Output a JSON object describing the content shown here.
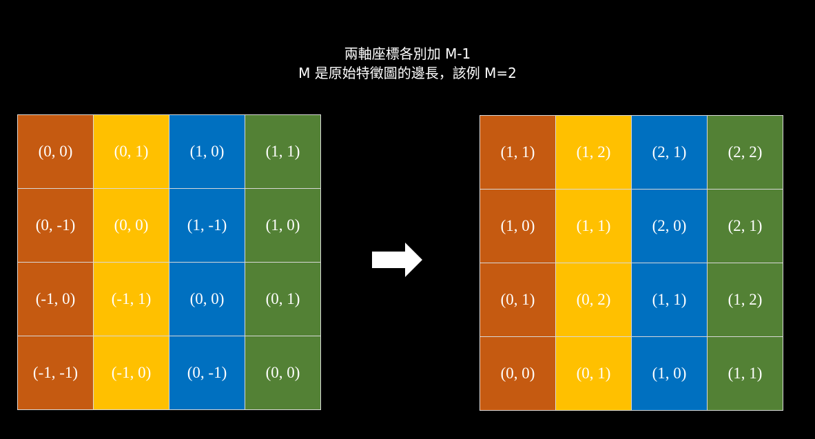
{
  "caption": {
    "line1": "兩軸座標各別加 M-1",
    "line2": "M 是原始特徵圖的邊長，該例 M=2"
  },
  "colors": [
    "#C55A11",
    "#FFC000",
    "#0070C0",
    "#538135"
  ],
  "left_grid": [
    [
      "(0, 0)",
      "(0, 1)",
      "(1, 0)",
      "(1, 1)"
    ],
    [
      "(0, -1)",
      "(0, 0)",
      "(1, -1)",
      "(1, 0)"
    ],
    [
      "(-1, 0)",
      "(-1, 1)",
      "(0, 0)",
      "(0, 1)"
    ],
    [
      "(-1, -1)",
      "(-1, 0)",
      "(0, -1)",
      "(0, 0)"
    ]
  ],
  "right_grid": [
    [
      "(1, 1)",
      "(1, 2)",
      "(2, 1)",
      "(2, 2)"
    ],
    [
      "(1, 0)",
      "(1, 1)",
      "(2, 0)",
      "(2, 1)"
    ],
    [
      "(0, 1)",
      "(0, 2)",
      "(1, 1)",
      "(1, 2)"
    ],
    [
      "(0, 0)",
      "(0, 1)",
      "(1, 0)",
      "(1, 1)"
    ]
  ],
  "arrow_icon": "right-arrow-icon"
}
